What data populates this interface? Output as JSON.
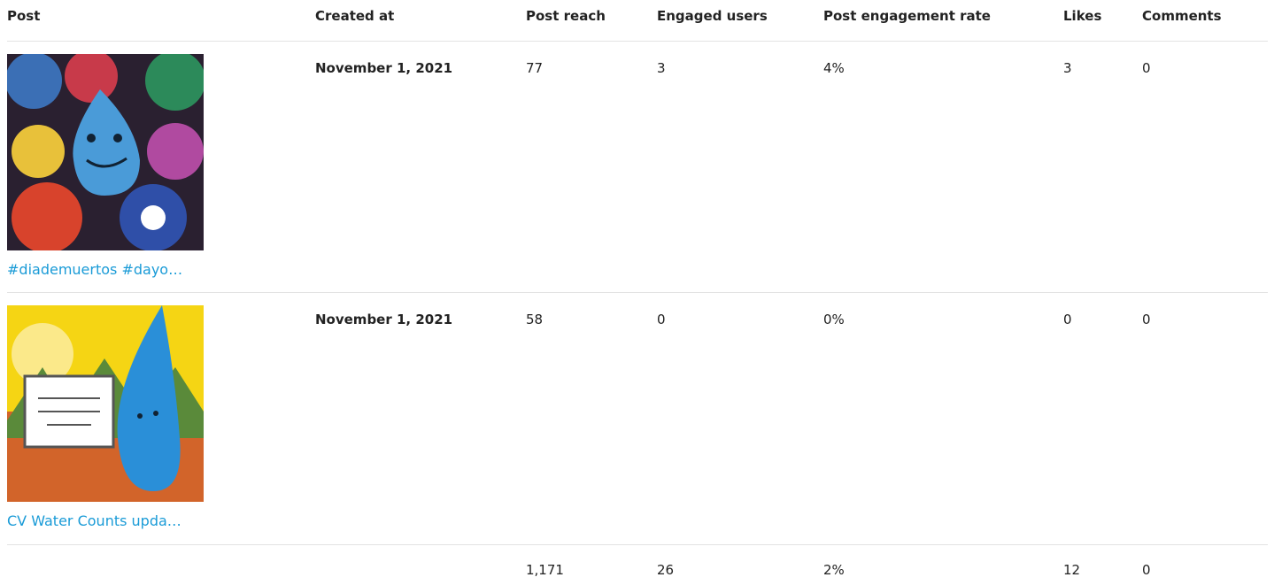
{
  "table": {
    "headers": [
      "Post",
      "Created at",
      "Post reach",
      "Engaged users",
      "Post engagement rate",
      "Likes",
      "Comments"
    ],
    "rows": [
      [
        "#diademuertos #dayo…",
        "November 1, 2021",
        "77",
        "3",
        "4%",
        "3",
        "0"
      ],
      [
        "CV Water Counts upda…",
        "November 1, 2021",
        "58",
        "0",
        "0%",
        "0",
        "0"
      ]
    ],
    "totals": [
      "1,171",
      "26",
      "2%",
      "12",
      "0"
    ]
  }
}
